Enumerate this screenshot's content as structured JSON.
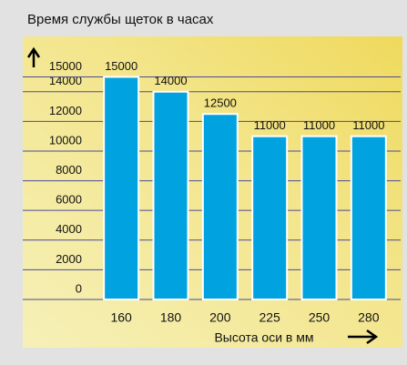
{
  "chart_data": {
    "type": "bar",
    "title": "Время службы щеток в часах",
    "x_label": "Высота оси в мм",
    "categories": [
      "160",
      "180",
      "200",
      "225",
      "250",
      "280"
    ],
    "values": [
      15000,
      14000,
      12500,
      11000,
      11000,
      11000
    ],
    "color": "#00a3e0",
    "ylim": [
      0,
      16500
    ],
    "yticks": [
      0,
      2000,
      4000,
      6000,
      8000,
      10000,
      12000,
      14000,
      15000
    ],
    "grid": true
  }
}
